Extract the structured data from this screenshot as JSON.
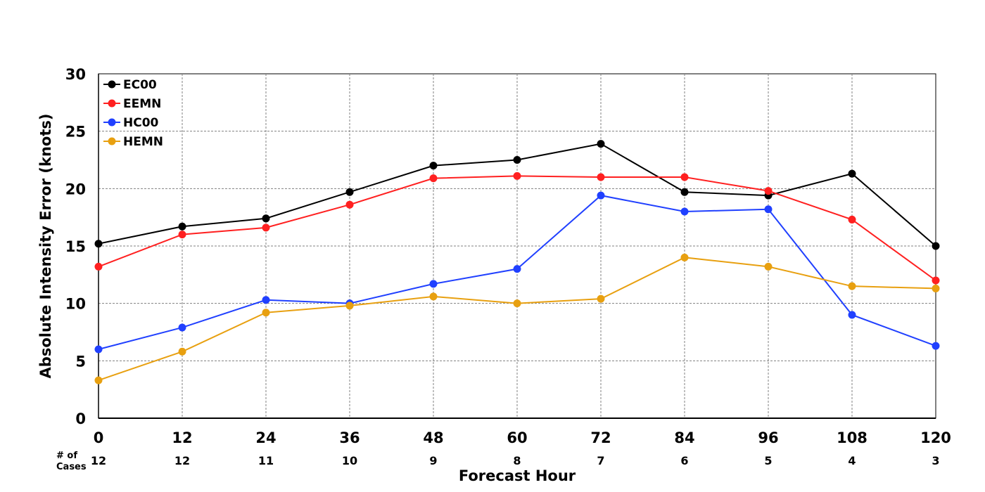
{
  "chart_data": {
    "type": "line",
    "xlabel": "Forecast Hour",
    "ylabel": "Absolute Intensity Error (knots)",
    "x": [
      0,
      12,
      24,
      36,
      48,
      60,
      72,
      84,
      96,
      108,
      120
    ],
    "xlim": [
      0,
      120
    ],
    "ylim": [
      0,
      30
    ],
    "yticks": [
      0,
      5,
      10,
      15,
      20,
      25,
      30
    ],
    "grid": true,
    "legend_position": "top-left",
    "cases_label_line1": "# of",
    "cases_label_line2": "Cases",
    "cases": [
      12,
      12,
      11,
      10,
      9,
      8,
      7,
      6,
      5,
      4,
      3
    ],
    "series": [
      {
        "name": "EC00",
        "color": "#000000",
        "values": [
          15.2,
          16.7,
          17.4,
          19.7,
          22.0,
          22.5,
          23.9,
          19.7,
          19.4,
          21.3,
          15.0
        ]
      },
      {
        "name": "EEMN",
        "color": "#ff2020",
        "values": [
          13.2,
          16.0,
          16.6,
          18.6,
          20.9,
          21.1,
          21.0,
          21.0,
          19.8,
          17.3,
          12.0
        ]
      },
      {
        "name": "HC00",
        "color": "#2040ff",
        "values": [
          6.0,
          7.9,
          10.3,
          10.0,
          11.7,
          13.0,
          19.4,
          18.0,
          18.2,
          9.0,
          6.3
        ]
      },
      {
        "name": "HEMN",
        "color": "#e8a010",
        "values": [
          3.3,
          5.8,
          9.2,
          9.8,
          10.6,
          10.0,
          10.4,
          14.0,
          13.2,
          11.5,
          11.3
        ]
      }
    ]
  }
}
